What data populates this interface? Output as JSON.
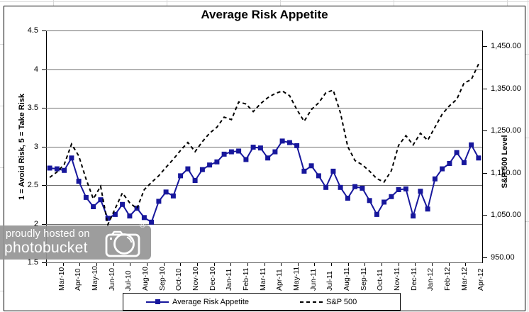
{
  "title_bar": {
    "title": "Average Risk Appetite"
  },
  "watermark": {
    "line1": "proudly hosted on",
    "line2": "photobucket",
    "registered": "®"
  },
  "colors": {
    "risk_series": "#17179c",
    "sp500_series": "#000000",
    "gridline": "#6f6f6f",
    "watermark_bg": "#969696"
  },
  "chart_data": {
    "type": "line",
    "title": "Average Risk Appetite",
    "legend_position": "bottom",
    "grid": true,
    "x_axis": {
      "categories": [
        "Mar-10",
        "Apr-10",
        "May-10",
        "Jun-10",
        "Jul-10",
        "Aug-10",
        "Sep-10",
        "Oct-10",
        "Nov-10",
        "Dec-10",
        "Jan-11",
        "Feb-11",
        "Mar-11",
        "Apr-11",
        "May-11",
        "Jun-11",
        "Jul-11",
        "Aug-11",
        "Sep-11",
        "Oct-11",
        "Nov-11",
        "Dec-11",
        "Jan-12",
        "Feb-12",
        "Mar-12",
        "Apr-12"
      ],
      "points_per_axis": 60
    },
    "y_left": {
      "label": "1 = Avoid Risk, 5 = Take Risk",
      "min": 1.5,
      "max": 4.5,
      "step": 0.5,
      "ticks": [
        "4.5",
        "4",
        "3.5",
        "3",
        "2.5",
        "2",
        "1.5"
      ],
      "tick_values": [
        4.5,
        4,
        3.5,
        3,
        2.5,
        2,
        1.5
      ]
    },
    "y_right": {
      "label": "S&P 500 Level",
      "scale_min": 937.5,
      "scale_max": 1487.5,
      "ticks": [
        "1,450.00",
        "1,350.00",
        "1,250.00",
        "1,150.00",
        "1,050.00",
        "950.00"
      ],
      "tick_values": [
        1450,
        1350,
        1250,
        1150,
        1050,
        950
      ]
    },
    "series": [
      {
        "name": "Average Risk Appetite",
        "axis": "left",
        "style": "solid",
        "marker": "square",
        "color": "#17179c",
        "values": [
          2.72,
          2.71,
          2.69,
          2.85,
          2.55,
          2.34,
          2.22,
          2.31,
          2.07,
          2.12,
          2.25,
          2.1,
          2.2,
          2.08,
          2.02,
          2.29,
          2.41,
          2.36,
          2.62,
          2.71,
          2.56,
          2.7,
          2.76,
          2.8,
          2.9,
          2.93,
          2.94,
          2.83,
          2.99,
          2.98,
          2.85,
          2.93,
          3.07,
          3.05,
          3.01,
          2.68,
          2.75,
          2.62,
          2.47,
          2.68,
          2.47,
          2.33,
          2.48,
          2.46,
          2.3,
          2.12,
          2.28,
          2.35,
          2.44,
          2.45,
          2.1,
          2.42,
          2.19,
          2.58,
          2.71,
          2.78,
          2.92,
          2.79,
          3.02,
          2.85
        ]
      },
      {
        "name": "S&P 500",
        "axis": "right",
        "style": "dashed",
        "marker": "none",
        "color": "#000000",
        "values": [
          1139,
          1152,
          1170,
          1218,
          1190,
          1135,
          1088,
          1118,
          1027,
          1065,
          1102,
          1079,
          1065,
          1110,
          1127,
          1143,
          1163,
          1182,
          1203,
          1222,
          1200,
          1224,
          1244,
          1258,
          1282,
          1276,
          1318,
          1313,
          1295,
          1314,
          1328,
          1338,
          1344,
          1333,
          1300,
          1272,
          1300,
          1316,
          1340,
          1346,
          1292,
          1212,
          1179,
          1169,
          1154,
          1136,
          1128,
          1155,
          1215,
          1238,
          1216,
          1244,
          1227,
          1258,
          1289,
          1309,
          1324,
          1363,
          1371,
          1408
        ]
      }
    ]
  }
}
